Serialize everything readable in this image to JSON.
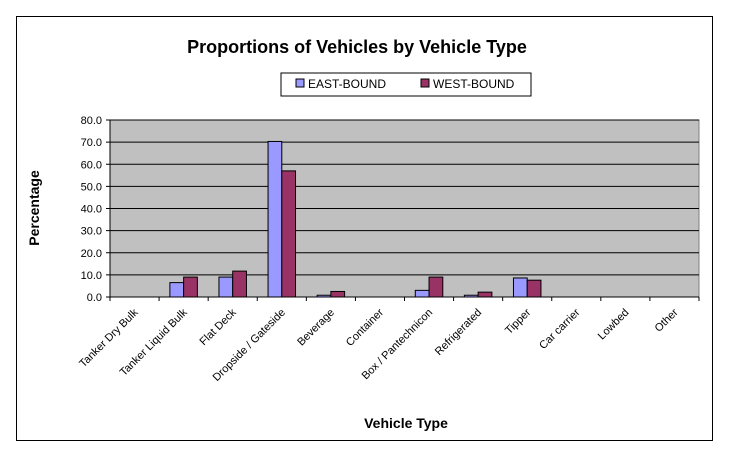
{
  "chart_data": {
    "type": "bar",
    "title": "Proportions of Vehicles by Vehicle Type",
    "xlabel": "Vehicle Type",
    "ylabel": "Percentage",
    "ylim": [
      0,
      80
    ],
    "yticks": [
      "0.0",
      "10.0",
      "20.0",
      "30.0",
      "40.0",
      "50.0",
      "60.0",
      "70.0",
      "80.0"
    ],
    "grid": true,
    "legend_position": "top-right",
    "categories": [
      "Tanker Dry Bulk",
      "Tanker Liquid Bulk",
      "Flat Deck",
      "Dropside / Gateside",
      "Beverage",
      "Container",
      "Box / Pantechnicon",
      "Refrigerated",
      "Tipper",
      "Car carrier",
      "Lowbed",
      "Other"
    ],
    "series": [
      {
        "name": "EAST-BOUND",
        "color": "#9999FF",
        "values": [
          0,
          6.5,
          9.0,
          70.3,
          0.8,
          0,
          3.0,
          0.8,
          8.6,
          0,
          0,
          0
        ]
      },
      {
        "name": "WEST-BOUND",
        "color": "#993366",
        "values": [
          0,
          9.0,
          11.7,
          57.0,
          2.5,
          0,
          9.0,
          2.2,
          7.6,
          0,
          0,
          0
        ]
      }
    ],
    "plot_background": "#C0C0C0"
  }
}
